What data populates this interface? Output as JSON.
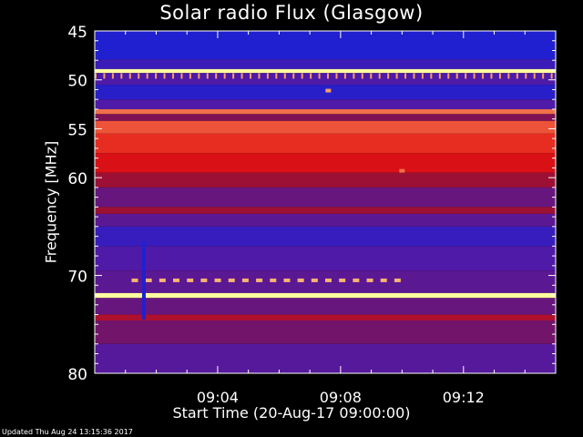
{
  "chart_data": {
    "type": "heatmap",
    "title": "Solar radio Flux (Glasgow)",
    "xlabel": "Start Time (20-Aug-17 09:00:00)",
    "ylabel": "Frequency [MHz]",
    "x_ticks": [
      "09:04",
      "09:08",
      "09:12"
    ],
    "x_tick_values_min": [
      4,
      8,
      12
    ],
    "xlim_min": [
      0,
      15
    ],
    "y_ticks": [
      45,
      50,
      55,
      60,
      70,
      80
    ],
    "ylim": [
      45,
      80
    ],
    "y_axis_inverted": true,
    "grid": false,
    "color_scale": [
      "#2020d0",
      "#4f1aa8",
      "#8a1040",
      "#e41010",
      "#ffffa0"
    ],
    "bands": [
      {
        "freq_from": 45.0,
        "freq_to": 47.9,
        "level": 0.0
      },
      {
        "freq_from": 47.9,
        "freq_to": 48.9,
        "level": 0.15
      },
      {
        "freq_from": 48.9,
        "freq_to": 49.3,
        "level": 1.0
      },
      {
        "freq_from": 49.3,
        "freq_to": 50.5,
        "level": 0.25
      },
      {
        "freq_from": 50.5,
        "freq_to": 52.0,
        "level": 0.05
      },
      {
        "freq_from": 52.0,
        "freq_to": 53.0,
        "level": 0.25
      },
      {
        "freq_from": 53.0,
        "freq_to": 53.5,
        "level": 0.85
      },
      {
        "freq_from": 53.5,
        "freq_to": 54.2,
        "level": 0.45
      },
      {
        "freq_from": 54.2,
        "freq_to": 55.5,
        "level": 0.82
      },
      {
        "freq_from": 55.5,
        "freq_to": 57.5,
        "level": 0.78
      },
      {
        "freq_from": 57.5,
        "freq_to": 59.5,
        "level": 0.72
      },
      {
        "freq_from": 59.5,
        "freq_to": 61.0,
        "level": 0.55
      },
      {
        "freq_from": 61.0,
        "freq_to": 63.0,
        "level": 0.35
      },
      {
        "freq_from": 63.0,
        "freq_to": 63.7,
        "level": 0.55
      },
      {
        "freq_from": 63.7,
        "freq_to": 65.0,
        "level": 0.3
      },
      {
        "freq_from": 65.0,
        "freq_to": 67.0,
        "level": 0.12
      },
      {
        "freq_from": 67.0,
        "freq_to": 69.5,
        "level": 0.25
      },
      {
        "freq_from": 69.5,
        "freq_to": 71.8,
        "level": 0.3
      },
      {
        "freq_from": 71.8,
        "freq_to": 72.3,
        "level": 1.0
      },
      {
        "freq_from": 72.3,
        "freq_to": 74.0,
        "level": 0.35
      },
      {
        "freq_from": 74.0,
        "freq_to": 74.6,
        "level": 0.6
      },
      {
        "freq_from": 74.6,
        "freq_to": 77.0,
        "level": 0.4
      },
      {
        "freq_from": 77.0,
        "freq_to": 80.0,
        "level": 0.28
      }
    ],
    "events": [
      {
        "kind": "comb",
        "freq": 49.6,
        "t_from": 0.0,
        "t_to": 15.0,
        "level": 0.9
      },
      {
        "kind": "dashed",
        "freq": 70.5,
        "t_from": 1.2,
        "t_to": 10.0,
        "level": 0.92
      },
      {
        "kind": "spike",
        "freq_from": 66.5,
        "freq_to": 74.5,
        "t": 1.6,
        "level": 0.0
      },
      {
        "kind": "point",
        "freq": 59.3,
        "t": 10.0,
        "level": 0.85
      },
      {
        "kind": "point",
        "freq": 51.1,
        "t": 7.6,
        "level": 0.9
      }
    ]
  },
  "footer_text": "Updated Thu Aug 24 13:15:36 2017"
}
